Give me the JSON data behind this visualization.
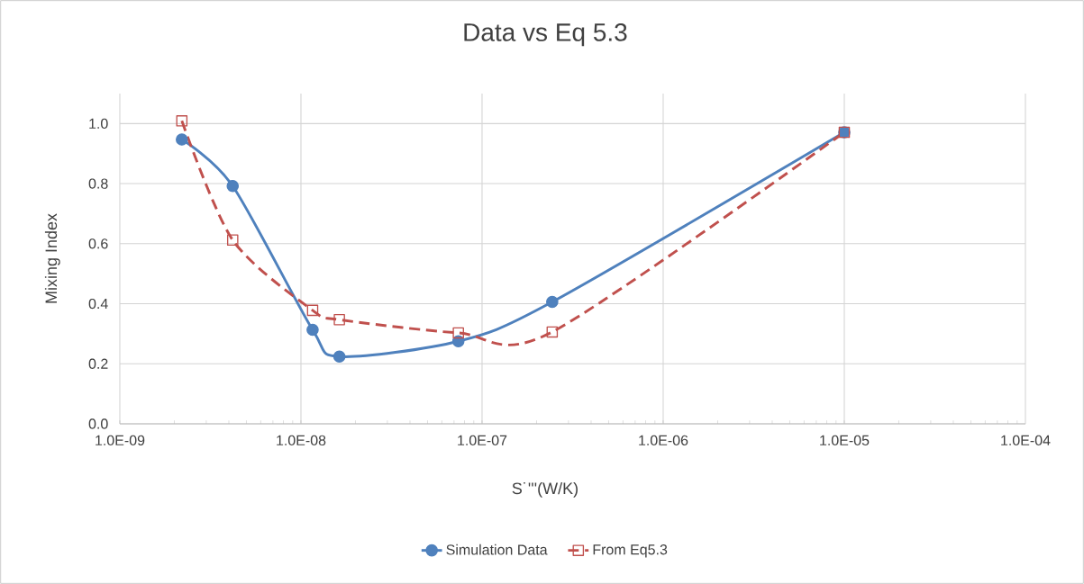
{
  "chart_data": {
    "type": "line",
    "title": "Data vs Eq 5.3",
    "xlabel": "S˙'''(W/K)",
    "ylabel": "Mixing Index",
    "x": [
      2.2e-09,
      4.2e-09,
      1.16e-08,
      1.63e-08,
      7.4e-08,
      2.44e-07,
      1e-05
    ],
    "series": [
      {
        "name": "Simulation Data",
        "color": "#4f81bd",
        "marker": "circle",
        "line_style": "solid",
        "values": [
          0.947,
          0.792,
          0.313,
          0.224,
          0.275,
          0.406,
          0.971
        ]
      },
      {
        "name": "From Eq5.3",
        "color": "#c0504d",
        "marker": "square",
        "line_style": "dashed",
        "values": [
          1.009,
          0.612,
          0.378,
          0.347,
          0.303,
          0.306,
          0.971
        ]
      }
    ],
    "log": "x",
    "xlim": [
      1e-09,
      0.0001
    ],
    "xticks": [
      {
        "value": 1e-09,
        "label": "1.0E-09"
      },
      {
        "value": 1e-08,
        "label": "1.0E-08"
      },
      {
        "value": 1e-07,
        "label": "1.0E-07"
      },
      {
        "value": 1e-06,
        "label": "1.0E-06"
      },
      {
        "value": 1e-05,
        "label": "1.0E-05"
      },
      {
        "value": 0.0001,
        "label": "1.0E-04"
      }
    ],
    "ylim": [
      0,
      1.1
    ],
    "yticks": [
      {
        "value": 0,
        "label": "0.0"
      },
      {
        "value": 0.2,
        "label": "0.2"
      },
      {
        "value": 0.4,
        "label": "0.4"
      },
      {
        "value": 0.6,
        "label": "0.6"
      },
      {
        "value": 0.8,
        "label": "0.8"
      },
      {
        "value": 1.0,
        "label": "1.0"
      }
    ],
    "grid": true,
    "legend": "bottom"
  }
}
